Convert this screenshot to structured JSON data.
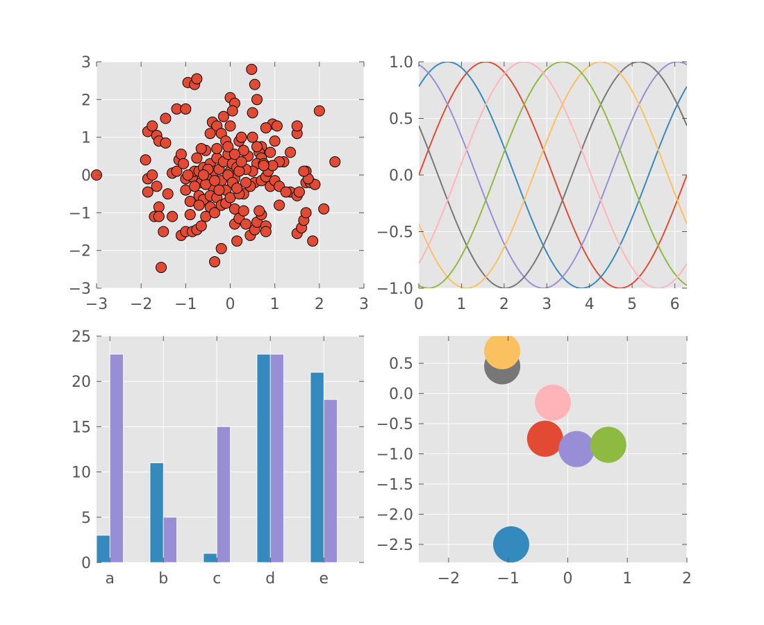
{
  "theme": {
    "panel_bg": "#e5e5e5",
    "grid": "#ffffff",
    "text": "#555555",
    "scatter_fill": "#e24a33",
    "palette": [
      "#e24a33",
      "#348abd",
      "#988ed5",
      "#777777",
      "#fbc15e",
      "#8eba42",
      "#ffb5b8"
    ]
  },
  "chart_data": [
    {
      "type": "scatter",
      "xlim": [
        -3,
        3
      ],
      "ylim": [
        -3,
        3
      ],
      "xticks": [
        "−3",
        "−2",
        "−1",
        "0",
        "1",
        "2",
        "3"
      ],
      "yticks": [
        "3",
        "2",
        "1",
        "0",
        "−1",
        "−2",
        "−3"
      ],
      "grid": true,
      "marker_color": "#e24a33",
      "points": [
        [
          -3.0,
          0.0
        ],
        [
          -1.9,
          0.4
        ],
        [
          -1.85,
          1.15
        ],
        [
          -1.75,
          1.3
        ],
        [
          -1.65,
          1.05
        ],
        [
          -1.6,
          0.9
        ],
        [
          -1.45,
          0.85
        ],
        [
          -1.45,
          1.5
        ],
        [
          -1.2,
          1.75
        ],
        [
          -1.0,
          1.75
        ],
        [
          -0.95,
          2.45
        ],
        [
          -0.8,
          2.4
        ],
        [
          -0.75,
          2.55
        ],
        [
          0.0,
          2.05
        ],
        [
          0.1,
          1.9
        ],
        [
          0.05,
          1.7
        ],
        [
          0.48,
          2.8
        ],
        [
          0.55,
          2.4
        ],
        [
          0.6,
          2.0
        ],
        [
          0.5,
          1.65
        ],
        [
          2.0,
          1.7
        ],
        [
          2.35,
          0.35
        ],
        [
          -1.85,
          -0.1
        ],
        [
          -1.75,
          0.0
        ],
        [
          -1.65,
          -0.3
        ],
        [
          -1.85,
          -0.45
        ],
        [
          -1.7,
          -1.1
        ],
        [
          -1.6,
          -0.85
        ],
        [
          -1.6,
          -1.1
        ],
        [
          -1.5,
          -1.5
        ],
        [
          -1.4,
          -0.5
        ],
        [
          -1.3,
          -1.1
        ],
        [
          -1.55,
          -2.45
        ],
        [
          -1.1,
          -1.6
        ],
        [
          -1.0,
          -1.5
        ],
        [
          -0.85,
          -1.5
        ],
        [
          -0.75,
          -1.45
        ],
        [
          -0.65,
          -1.35
        ],
        [
          -0.9,
          -1.05
        ],
        [
          -0.9,
          -0.7
        ],
        [
          -0.7,
          -0.55
        ],
        [
          -0.55,
          -1.1
        ],
        [
          -0.45,
          -0.85
        ],
        [
          -0.35,
          -1.0
        ],
        [
          -0.2,
          -1.95
        ],
        [
          -0.35,
          -2.3
        ],
        [
          0.15,
          -1.75
        ],
        [
          0.1,
          -1.3
        ],
        [
          0.2,
          -1.15
        ],
        [
          0.35,
          -1.3
        ],
        [
          0.45,
          -1.6
        ],
        [
          0.55,
          -1.45
        ],
        [
          0.6,
          -1.25
        ],
        [
          0.7,
          -1.05
        ],
        [
          0.8,
          -1.35
        ],
        [
          0.8,
          -1.5
        ],
        [
          0.65,
          -0.95
        ],
        [
          1.5,
          -1.55
        ],
        [
          1.6,
          -1.4
        ],
        [
          1.65,
          -1.2
        ],
        [
          1.7,
          -1.0
        ],
        [
          1.85,
          -1.75
        ],
        [
          2.1,
          -0.9
        ],
        [
          1.1,
          -0.8
        ],
        [
          1.35,
          -0.45
        ],
        [
          1.5,
          -0.55
        ],
        [
          1.55,
          -0.45
        ],
        [
          1.7,
          -0.2
        ],
        [
          1.8,
          -0.2
        ],
        [
          1.9,
          -0.25
        ],
        [
          1.7,
          0.1
        ],
        [
          1.75,
          -0.1
        ],
        [
          1.65,
          0.1
        ],
        [
          1.5,
          1.1
        ],
        [
          1.5,
          1.3
        ],
        [
          1.35,
          0.6
        ],
        [
          1.2,
          0.35
        ],
        [
          1.1,
          0.35
        ],
        [
          1.0,
          0.9
        ],
        [
          0.9,
          0.6
        ],
        [
          0.95,
          1.35
        ],
        [
          1.05,
          1.3
        ],
        [
          0.8,
          1.25
        ],
        [
          0.7,
          0.75
        ],
        [
          0.65,
          0.6
        ],
        [
          0.7,
          0.45
        ],
        [
          0.6,
          0.3
        ],
        [
          0.5,
          0.1
        ],
        [
          0.55,
          -0.2
        ],
        [
          0.7,
          -0.15
        ],
        [
          0.8,
          -0.05
        ],
        [
          0.9,
          -0.3
        ],
        [
          1.0,
          -0.15
        ],
        [
          1.1,
          -0.3
        ],
        [
          0.85,
          0.1
        ],
        [
          0.95,
          0.25
        ],
        [
          0.75,
          0.3
        ],
        [
          1.25,
          -0.45
        ],
        [
          -1.3,
          0.05
        ],
        [
          -1.2,
          0.1
        ],
        [
          -1.15,
          0.4
        ],
        [
          -1.1,
          0.55
        ],
        [
          -1.05,
          0.3
        ],
        [
          -1.0,
          -0.1
        ],
        [
          -1.0,
          -0.4
        ],
        [
          -0.85,
          -0.05
        ],
        [
          -0.8,
          0.1
        ],
        [
          -0.75,
          0.45
        ],
        [
          -0.7,
          0.1
        ],
        [
          -0.65,
          -0.2
        ],
        [
          -0.6,
          0.2
        ],
        [
          -0.55,
          0.65
        ],
        [
          -0.5,
          0.0
        ],
        [
          -0.45,
          0.3
        ],
        [
          -0.4,
          -0.3
        ],
        [
          -0.35,
          0.1
        ],
        [
          -0.3,
          0.45
        ],
        [
          -0.3,
          0.7
        ],
        [
          -0.25,
          0.15
        ],
        [
          -0.2,
          -0.15
        ],
        [
          -0.15,
          0.35
        ],
        [
          -0.1,
          -0.4
        ],
        [
          -0.05,
          0.55
        ],
        [
          0.0,
          0.1
        ],
        [
          0.05,
          0.3
        ],
        [
          0.1,
          -0.1
        ],
        [
          0.15,
          0.2
        ],
        [
          0.2,
          0.9
        ],
        [
          0.25,
          1.0
        ],
        [
          0.3,
          -0.5
        ],
        [
          0.35,
          0.15
        ],
        [
          0.4,
          0.5
        ],
        [
          0.45,
          -0.3
        ],
        [
          -0.4,
          1.4
        ],
        [
          -0.3,
          1.3
        ],
        [
          -0.2,
          1.1
        ],
        [
          -0.1,
          0.9
        ],
        [
          0.0,
          1.3
        ],
        [
          -0.45,
          1.1
        ],
        [
          -0.65,
          0.7
        ],
        [
          -0.6,
          -0.65
        ],
        [
          -0.45,
          -0.55
        ],
        [
          -0.3,
          -0.6
        ],
        [
          -0.2,
          -0.8
        ],
        [
          -0.1,
          -0.75
        ],
        [
          0.0,
          -0.6
        ],
        [
          0.1,
          -0.9
        ],
        [
          0.2,
          -0.5
        ],
        [
          0.3,
          -0.95
        ],
        [
          -0.8,
          -0.3
        ],
        [
          -0.7,
          -0.8
        ],
        [
          -0.55,
          -0.25
        ],
        [
          -0.5,
          0.15
        ],
        [
          0.3,
          0.65
        ],
        [
          0.2,
          0.1
        ],
        [
          -0.05,
          0.0
        ],
        [
          0.35,
          -0.2
        ],
        [
          -0.25,
          -0.4
        ],
        [
          0.05,
          -0.2
        ],
        [
          -0.15,
          1.55
        ],
        [
          -0.05,
          0.75
        ],
        [
          0.1,
          0.55
        ],
        [
          -0.95,
          0.0
        ],
        [
          -0.6,
          0.0
        ],
        [
          0.15,
          -0.35
        ],
        [
          0.25,
          0.35
        ],
        [
          -0.35,
          -0.15
        ],
        [
          0.5,
          1.0
        ],
        [
          0.6,
          0.75
        ],
        [
          0.75,
          0.25
        ]
      ]
    },
    {
      "type": "line",
      "xlim": [
        0,
        6.283
      ],
      "ylim": [
        -1,
        1
      ],
      "xticks": [
        "0",
        "1",
        "2",
        "3",
        "4",
        "5",
        "6"
      ],
      "yticks": [
        "1.0",
        "0.5",
        "0.0",
        "−0.5",
        "−1.0"
      ],
      "grid": true,
      "function": "sin(x + phase)",
      "series": [
        {
          "phase": 0.0,
          "color": "#e24a33"
        },
        {
          "phase": 0.897,
          "color": "#348abd"
        },
        {
          "phase": 1.795,
          "color": "#988ed5"
        },
        {
          "phase": 2.692,
          "color": "#777777"
        },
        {
          "phase": 3.59,
          "color": "#fbc15e"
        },
        {
          "phase": 4.488,
          "color": "#8eba42"
        },
        {
          "phase": 5.386,
          "color": "#ffb5b8"
        }
      ]
    },
    {
      "type": "bar",
      "categories": [
        "a",
        "b",
        "c",
        "d",
        "e"
      ],
      "ylim": [
        0,
        25
      ],
      "yticks": [
        "25",
        "20",
        "15",
        "10",
        "5",
        "0"
      ],
      "grid": true,
      "series": [
        {
          "values": [
            3,
            11,
            1,
            23,
            21
          ],
          "color": "#348abd"
        },
        {
          "values": [
            23,
            5,
            15,
            23,
            18
          ],
          "color": "#988ed5"
        }
      ]
    },
    {
      "type": "scatter",
      "xlim": [
        -2.5,
        2
      ],
      "ylim": [
        -2.8,
        0.95
      ],
      "xticks": [
        "−2",
        "−1",
        "0",
        "1",
        "2"
      ],
      "yticks": [
        "0.5",
        "0.0",
        "−0.5",
        "−1.0",
        "−1.5",
        "−2.0",
        "−2.5"
      ],
      "grid": true,
      "points": [
        {
          "x": -1.1,
          "y": 0.45,
          "color": "#777777"
        },
        {
          "x": -1.1,
          "y": 0.7,
          "color": "#fbc15e"
        },
        {
          "x": -0.25,
          "y": -0.15,
          "color": "#ffb5b8"
        },
        {
          "x": -0.38,
          "y": -0.75,
          "color": "#e24a33"
        },
        {
          "x": 0.15,
          "y": -0.92,
          "color": "#988ed5"
        },
        {
          "x": 0.68,
          "y": -0.85,
          "color": "#8eba42"
        },
        {
          "x": -0.95,
          "y": -2.5,
          "color": "#348abd"
        }
      ]
    }
  ]
}
